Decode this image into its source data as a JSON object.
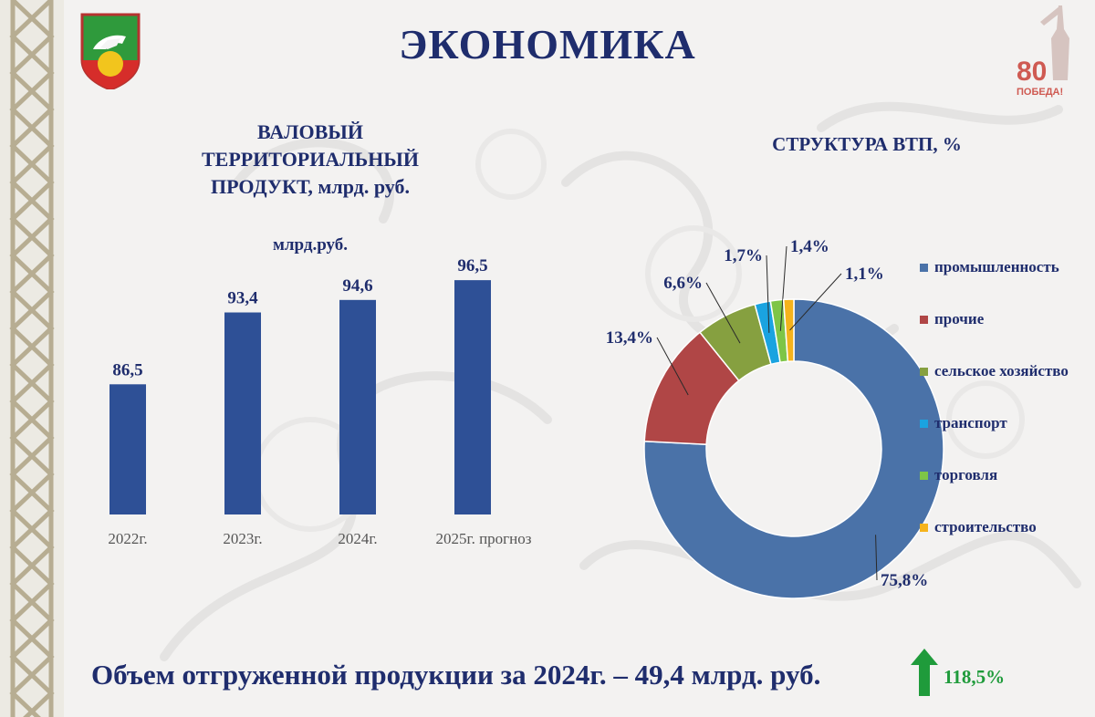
{
  "header": {
    "title": "ЭКОНОМИКА"
  },
  "logos": {
    "emblem_icon": "municipal-coat-of-arms",
    "victory_icon": "victory-80-emblem",
    "victory_text_number": "80",
    "victory_text_word": "ПОБЕДА!"
  },
  "colors": {
    "title": "#1f2d6d",
    "bar": "#2e5096",
    "growth": "#1f9b3b"
  },
  "chart_data": [
    {
      "type": "bar",
      "title": "ВАЛОВЫЙ\nТЕРРИТОРИАЛЬНЫЙ\nПРОДУКТ, млрд. руб.",
      "ylabel": "млрд.руб.",
      "categories": [
        "2022г.",
        "2023г.",
        "2024г.",
        "2025г. прогноз"
      ],
      "values": [
        86.5,
        93.4,
        94.6,
        96.5
      ],
      "value_labels": [
        "86,5",
        "93,4",
        "94,6",
        "96,5"
      ],
      "ylim": [
        74,
        98
      ],
      "grid": false
    },
    {
      "type": "pie",
      "style": "donut",
      "title": "СТРУКТУРА ВТП, %",
      "legend_position": "right",
      "slices": [
        {
          "label": "промышленность",
          "value": 75.8,
          "value_label": "75,8%",
          "color": "#4a72a8"
        },
        {
          "label": "прочие",
          "value": 13.4,
          "value_label": "13,4%",
          "color": "#b04646"
        },
        {
          "label": "сельское хозяйство",
          "value": 6.6,
          "value_label": "6,6%",
          "color": "#86a040"
        },
        {
          "label": "транспорт",
          "value": 1.7,
          "value_label": "1,7%",
          "color": "#1aa3e0"
        },
        {
          "label": "торговля",
          "value": 1.4,
          "value_label": "1,4%",
          "color": "#7ec547"
        },
        {
          "label": "строительство",
          "value": 1.1,
          "value_label": "1,1%",
          "color": "#f5b31c"
        }
      ]
    }
  ],
  "footer": {
    "text": "Объем отгруженной продукции за 2024г. – 49,4 млрд. руб.",
    "growth_icon": "up-arrow",
    "growth_value": "118,5%"
  }
}
